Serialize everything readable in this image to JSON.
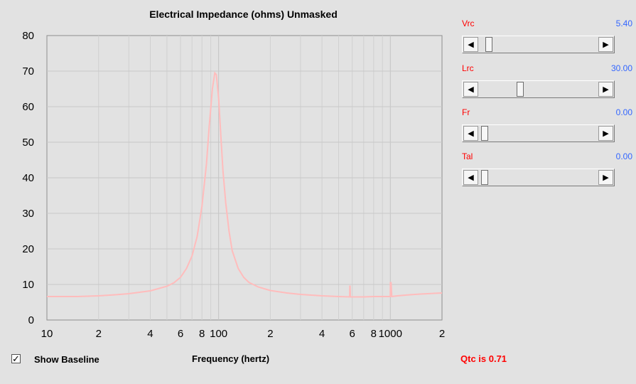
{
  "chart_data": {
    "type": "line",
    "title": "Electrical Impedance (ohms)   Unmasked",
    "xlabel": "Frequency (hertz)",
    "ylabel": "",
    "x_scale": "log",
    "xlim": [
      10,
      2000
    ],
    "ylim": [
      0,
      80
    ],
    "x_tick_labels": [
      "10",
      "2",
      "4",
      "6",
      "8",
      "100",
      "2",
      "4",
      "6",
      "8",
      "1000",
      "2"
    ],
    "x_tick_values": [
      10,
      20,
      40,
      60,
      80,
      100,
      200,
      400,
      600,
      800,
      1000,
      2000
    ],
    "y_ticks": [
      0,
      10,
      20,
      30,
      40,
      50,
      60,
      70,
      80
    ],
    "grid": true,
    "series": [
      {
        "color": "#ffbcbc",
        "x": [
          10,
          15,
          20,
          25,
          30,
          40,
          50,
          55,
          60,
          65,
          70,
          75,
          80,
          85,
          88,
          92,
          95,
          97,
          100,
          103,
          106,
          110,
          115,
          120,
          130,
          140,
          150,
          170,
          200,
          250,
          300,
          400,
          500,
          580,
          581,
          583,
          585,
          600,
          700,
          800,
          1000,
          1001,
          1010,
          1020,
          1100,
          1300,
          1500,
          1800,
          2000
        ],
        "y": [
          6.6,
          6.6,
          6.8,
          7.1,
          7.4,
          8.2,
          9.5,
          10.5,
          12.0,
          14.5,
          18.0,
          23.5,
          32.0,
          44.0,
          54.0,
          65.0,
          69.5,
          69.0,
          62.5,
          52.0,
          42.0,
          33.0,
          25.0,
          19.5,
          14.5,
          12.0,
          10.6,
          9.3,
          8.3,
          7.6,
          7.2,
          6.8,
          6.6,
          6.5,
          9.5,
          9.5,
          6.5,
          6.5,
          6.5,
          6.6,
          6.6,
          10.5,
          10.5,
          6.6,
          6.8,
          7.1,
          7.3,
          7.5,
          7.6
        ]
      }
    ]
  },
  "controls": [
    {
      "label": "Vrc",
      "value": "5.40",
      "position": 0.06
    },
    {
      "label": "Lrc",
      "value": "30.00",
      "position": 0.34
    },
    {
      "label": "Fr",
      "value": "0.00",
      "position": 0.02
    },
    {
      "label": "Tal",
      "value": "0.00",
      "position": 0.02
    }
  ],
  "bottom": {
    "baseline_label": "Show Baseline",
    "baseline_checked": true,
    "baseline_check_glyph": "✓",
    "qtc": "Qtc is 0.71"
  },
  "icons": {
    "left_arrow": "◀",
    "right_arrow": "▶"
  }
}
